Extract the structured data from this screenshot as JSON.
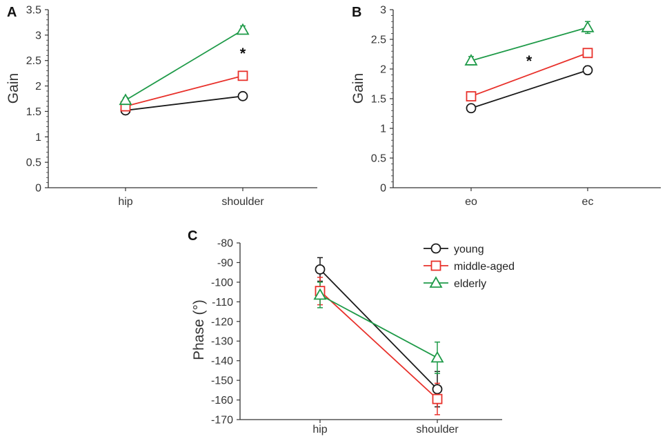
{
  "colors": {
    "young": "#1a1a1a",
    "middle_aged": "#e8302a",
    "elderly": "#1e9a48",
    "axis": "#333333"
  },
  "legend": {
    "young": "young",
    "middle_aged": "middle-aged",
    "elderly": "elderly"
  },
  "chart_data": [
    {
      "panel": "A",
      "type": "line",
      "ylabel": "Gain",
      "xlabel": "",
      "categories": [
        "hip",
        "shoulder"
      ],
      "ylim": [
        0,
        3.5
      ],
      "yticks": [
        "0",
        "0.5",
        "1",
        "1.5",
        "2",
        "2.5",
        "3",
        "3.5"
      ],
      "annotation": "*",
      "series": [
        {
          "key": "young",
          "name": "young",
          "marker": "circle",
          "values": [
            1.52,
            1.8
          ],
          "errors": [
            0.03,
            0.03
          ]
        },
        {
          "key": "middle_aged",
          "name": "middle-aged",
          "marker": "square",
          "values": [
            1.6,
            2.2
          ],
          "errors": [
            0.04,
            0.05
          ]
        },
        {
          "key": "elderly",
          "name": "elderly",
          "marker": "triangle",
          "values": [
            1.72,
            3.1
          ],
          "errors": [
            0.05,
            0.08
          ]
        }
      ]
    },
    {
      "panel": "B",
      "type": "line",
      "ylabel": "Gain",
      "xlabel": "",
      "categories": [
        "eo",
        "ec"
      ],
      "ylim": [
        0,
        3
      ],
      "yticks": [
        "0",
        "0.5",
        "1",
        "1.5",
        "2",
        "2.5",
        "3"
      ],
      "annotation": "*",
      "series": [
        {
          "key": "young",
          "name": "young",
          "marker": "circle",
          "values": [
            1.34,
            1.98
          ],
          "errors": [
            0.03,
            0.07
          ]
        },
        {
          "key": "middle_aged",
          "name": "middle-aged",
          "marker": "square",
          "values": [
            1.54,
            2.27
          ],
          "errors": [
            0.04,
            0.07
          ]
        },
        {
          "key": "elderly",
          "name": "elderly",
          "marker": "triangle",
          "values": [
            2.14,
            2.7
          ],
          "errors": [
            0.07,
            0.1
          ]
        }
      ]
    },
    {
      "panel": "C",
      "type": "line",
      "ylabel": "Phase (°)",
      "xlabel": "",
      "categories": [
        "hip",
        "shoulder"
      ],
      "ylim": [
        -170,
        -80
      ],
      "yticks": [
        "-80",
        "-90",
        "-100",
        "-110",
        "-120",
        "-130",
        "-140",
        "-150",
        "-160",
        "-170"
      ],
      "legend": "top-right",
      "series": [
        {
          "key": "young",
          "name": "young",
          "marker": "circle",
          "values": [
            -93.5,
            -154.5
          ],
          "errors": [
            6,
            9
          ]
        },
        {
          "key": "middle_aged",
          "name": "middle-aged",
          "marker": "square",
          "values": [
            -104.5,
            -159.5
          ],
          "errors": [
            7,
            8
          ]
        },
        {
          "key": "elderly",
          "name": "elderly",
          "marker": "triangle",
          "values": [
            -106.5,
            -138.5
          ],
          "errors": [
            6.5,
            8
          ]
        }
      ]
    }
  ]
}
